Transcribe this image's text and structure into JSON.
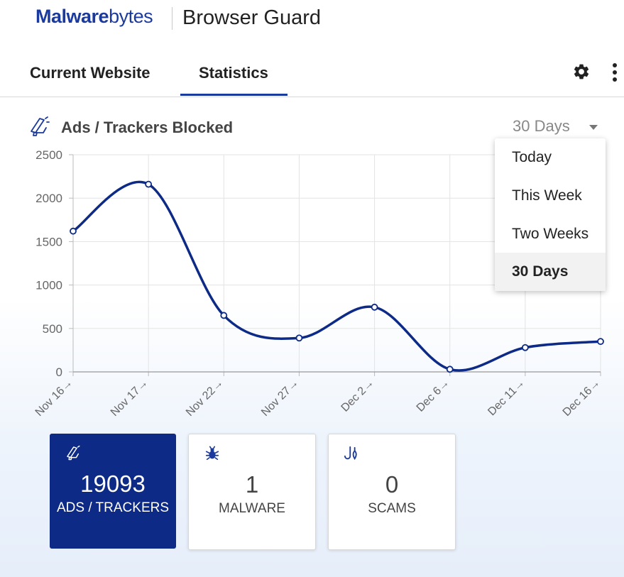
{
  "header": {
    "logo_bold": "Malware",
    "logo_light": "bytes",
    "product": "Browser Guard"
  },
  "tabs": [
    {
      "label": "Current Website",
      "active": false
    },
    {
      "label": "Statistics",
      "active": true
    }
  ],
  "toolbar": {
    "settings_icon": "gear-icon",
    "menu_icon": "kebab-menu-icon"
  },
  "chart_header": {
    "icon": "megaphone-icon",
    "title": "Ads / Trackers Blocked",
    "range_selected": "30 Days"
  },
  "dropdown": {
    "options": [
      "Today",
      "This Week",
      "Two Weeks",
      "30 Days"
    ],
    "selected": "30 Days"
  },
  "chart_data": {
    "type": "line",
    "x": [
      "Nov 16",
      "Nov 17",
      "Nov 22",
      "Nov 27",
      "Dec 2",
      "Dec 6",
      "Dec 11",
      "Dec 16"
    ],
    "tick_labels": [
      "Nov 16→",
      "Nov 17→",
      "Nov 22→",
      "Nov 27→",
      "Dec 2→",
      "Dec 6→",
      "Dec 11→",
      "Dec 16→"
    ],
    "series": [
      {
        "values": [
          1620,
          2160,
          650,
          390,
          745,
          30,
          280,
          350
        ]
      }
    ],
    "ylim": [
      0,
      2500
    ],
    "yticks": [
      0,
      500,
      1000,
      1500,
      2000,
      2500
    ],
    "grid": true,
    "line_color": "#0c2a86"
  },
  "cards": [
    {
      "icon": "megaphone-icon",
      "value": "19093",
      "label": "ADS / TRACKERS",
      "style": "blue"
    },
    {
      "icon": "bug-icon",
      "value": "1",
      "label": "MALWARE",
      "style": "white"
    },
    {
      "icon": "scam-hook-icon",
      "value": "0",
      "label": "SCAMS",
      "style": "white"
    }
  ]
}
